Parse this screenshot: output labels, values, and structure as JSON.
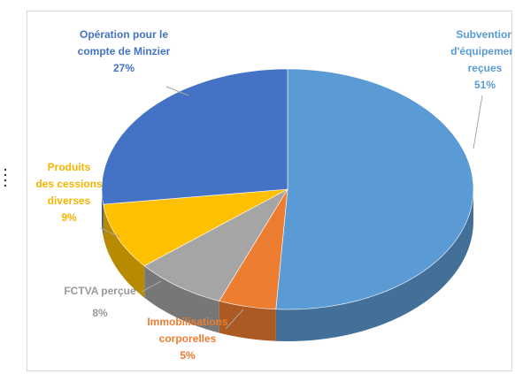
{
  "chart_data": {
    "type": "pie3d",
    "categories": [
      [
        "Subvention",
        "d'équipement",
        "reçues"
      ],
      [
        "Immobilisations",
        "corporelles"
      ],
      [
        "FCTVA perçue"
      ],
      [
        "Produits",
        "des cessions",
        "diverses"
      ],
      [
        "Opération pour le",
        "compte de Minzier"
      ]
    ],
    "values": [
      51,
      5,
      8,
      9,
      27
    ],
    "value_labels": [
      "51%",
      "5%",
      "8%",
      "9%",
      "27%"
    ],
    "colors": [
      "#5b9bd5",
      "#ed7d31",
      "#a5a5a5",
      "#ffc000",
      "#4472c4"
    ]
  }
}
